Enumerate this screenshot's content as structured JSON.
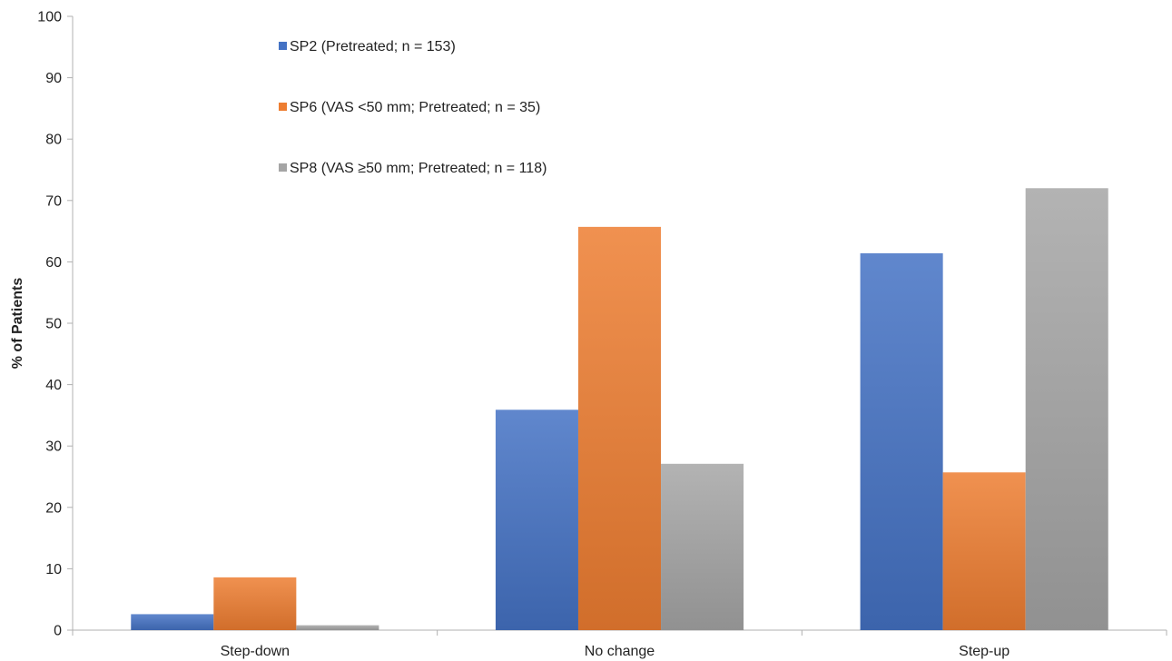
{
  "chart_data": {
    "type": "bar",
    "categories": [
      "Step-down",
      "No change",
      "Step-up"
    ],
    "series": [
      {
        "name": "SP2 (Pretreated; n = 153)",
        "values": [
          2.6,
          35.9,
          61.4
        ],
        "color": "#4472c4"
      },
      {
        "name": "SP6 (VAS <50 mm; Pretreated; n = 35)",
        "values": [
          8.6,
          65.7,
          25.7
        ],
        "color": "#ed7d31"
      },
      {
        "name": "SP8 (VAS ≥50 mm; Pretreated; n = 118)",
        "values": [
          0.8,
          27.1,
          72.0
        ],
        "color": "#a5a5a5"
      }
    ],
    "ylabel": "% of Patients",
    "ylim": [
      0,
      100
    ],
    "yticks": [
      0,
      10,
      20,
      30,
      40,
      50,
      60,
      70,
      80,
      90,
      100
    ],
    "grid": false,
    "legend_position": "top-center"
  }
}
